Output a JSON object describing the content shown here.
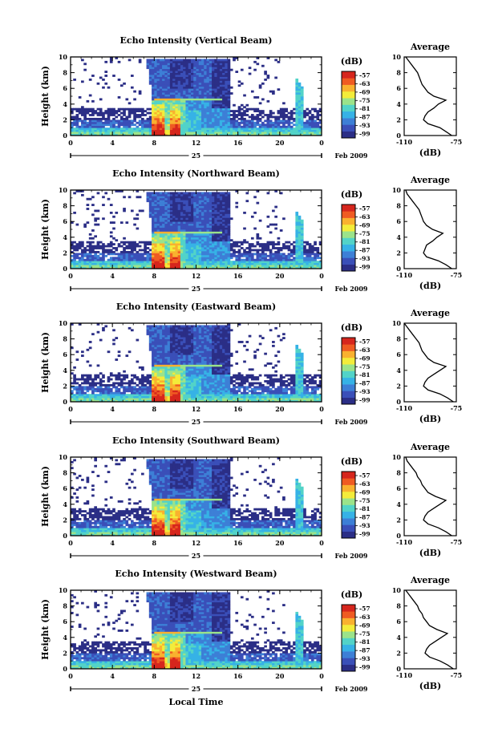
{
  "chart_data": [
    {
      "type": "heatmap",
      "title": "Echo Intensity (Vertical Beam)",
      "ylabel": "Height (km)",
      "xlim": [
        0,
        24
      ],
      "ylim": [
        0,
        10
      ],
      "xticks": [
        "0",
        "4",
        "8",
        "12",
        "16",
        "20",
        "0"
      ],
      "yticks": [
        "0",
        "2",
        "4",
        "6",
        "8",
        "10"
      ],
      "date_label": "25",
      "month_year": "Feb 2009",
      "colorbar": {
        "unit": "(dB)",
        "ticks": [
          "-57",
          "-63",
          "-69",
          "-75",
          "-81",
          "-87",
          "-93",
          "-99"
        ]
      },
      "average": {
        "title": "Average",
        "xlabel": "(dB)",
        "xticks": [
          "-110",
          "-75"
        ],
        "xlim": [
          -110,
          -75
        ],
        "height": [
          0,
          0.5,
          1,
          1.5,
          2,
          2.5,
          3,
          3.5,
          4,
          4.5,
          5,
          5.5,
          6,
          6.5,
          7,
          7.5,
          8,
          8.5,
          9,
          9.5,
          10
        ],
        "db": [
          -78,
          -82,
          -86,
          -94,
          -97,
          -96,
          -94,
          -90,
          -87,
          -82,
          -90,
          -94,
          -96,
          -98,
          -99,
          -100,
          -101,
          -103,
          -105,
          -107,
          -109
        ]
      }
    },
    {
      "type": "heatmap",
      "title": "Echo Intensity (Northward Beam)",
      "ylabel": "Height (km)",
      "xlim": [
        0,
        24
      ],
      "ylim": [
        0,
        10
      ],
      "xticks": [
        "0",
        "4",
        "8",
        "12",
        "16",
        "20",
        "0"
      ],
      "yticks": [
        "0",
        "2",
        "4",
        "6",
        "8",
        "10"
      ],
      "date_label": "25",
      "month_year": "Feb 2009",
      "colorbar": {
        "unit": "(dB)",
        "ticks": [
          "-57",
          "-63",
          "-69",
          "-75",
          "-81",
          "-87",
          "-93",
          "-99"
        ]
      },
      "average": {
        "title": "Average",
        "xlabel": "(dB)",
        "xticks": [
          "-110",
          "-75"
        ],
        "xlim": [
          -110,
          -75
        ],
        "height": [
          0,
          0.5,
          1,
          1.5,
          2,
          2.5,
          3,
          3.5,
          4,
          4.5,
          5,
          5.5,
          6,
          6.5,
          7,
          7.5,
          8,
          8.5,
          9,
          9.5,
          10
        ],
        "db": [
          -78,
          -82,
          -87,
          -95,
          -97,
          -96,
          -95,
          -91,
          -88,
          -84,
          -91,
          -95,
          -97,
          -98,
          -99,
          -100,
          -102,
          -104,
          -106,
          -108,
          -109
        ]
      }
    },
    {
      "type": "heatmap",
      "title": "Echo Intensity (Eastward Beam)",
      "ylabel": "Height (km)",
      "xlim": [
        0,
        24
      ],
      "ylim": [
        0,
        10
      ],
      "xticks": [
        "0",
        "4",
        "8",
        "12",
        "16",
        "20",
        "0"
      ],
      "yticks": [
        "0",
        "2",
        "4",
        "6",
        "8",
        "10"
      ],
      "date_label": "25",
      "month_year": "Feb 2009",
      "colorbar": {
        "unit": "(dB)",
        "ticks": [
          "-57",
          "-63",
          "-69",
          "-75",
          "-81",
          "-87",
          "-93",
          "-99"
        ]
      },
      "average": {
        "title": "Average",
        "xlabel": "(dB)",
        "xticks": [
          "-110",
          "-75"
        ],
        "xlim": [
          -110,
          -75
        ],
        "height": [
          0,
          0.5,
          1,
          1.5,
          2,
          2.5,
          3,
          3.5,
          4,
          4.5,
          5,
          5.5,
          6,
          6.5,
          7,
          7.5,
          8,
          8.5,
          9,
          9.5,
          10
        ],
        "db": [
          -77,
          -81,
          -86,
          -94,
          -97,
          -96,
          -94,
          -90,
          -86,
          -82,
          -90,
          -94,
          -96,
          -98,
          -99,
          -100,
          -102,
          -104,
          -106,
          -108,
          -110
        ]
      }
    },
    {
      "type": "heatmap",
      "title": "Echo Intensity (Southward Beam)",
      "ylabel": "Height (km)",
      "xlim": [
        0,
        24
      ],
      "ylim": [
        0,
        10
      ],
      "xticks": [
        "0",
        "4",
        "8",
        "12",
        "16",
        "20",
        "0"
      ],
      "yticks": [
        "0",
        "2",
        "4",
        "6",
        "8",
        "10"
      ],
      "date_label": "25",
      "month_year": "Feb 2009",
      "colorbar": {
        "unit": "(dB)",
        "ticks": [
          "-57",
          "-63",
          "-69",
          "-75",
          "-81",
          "-87",
          "-93",
          "-99"
        ]
      },
      "average": {
        "title": "Average",
        "xlabel": "(dB)",
        "xticks": [
          "-110",
          "-75"
        ],
        "xlim": [
          -110,
          -75
        ],
        "height": [
          0,
          0.5,
          1,
          1.5,
          2,
          2.5,
          3,
          3.5,
          4,
          4.5,
          5,
          5.5,
          6,
          6.5,
          7,
          7.5,
          8,
          8.5,
          9,
          9.5,
          10
        ],
        "db": [
          -78,
          -82,
          -87,
          -94,
          -97,
          -96,
          -94,
          -90,
          -86,
          -82,
          -89,
          -94,
          -96,
          -98,
          -99,
          -101,
          -102,
          -104,
          -106,
          -108,
          -109
        ]
      }
    },
    {
      "type": "heatmap",
      "title": "Echo Intensity (Westward Beam)",
      "ylabel": "Height (km)",
      "xlabel": "Local Time",
      "xlim": [
        0,
        24
      ],
      "ylim": [
        0,
        10
      ],
      "xticks": [
        "0",
        "4",
        "8",
        "12",
        "16",
        "20",
        "0"
      ],
      "yticks": [
        "0",
        "2",
        "4",
        "6",
        "8",
        "10"
      ],
      "date_label": "25",
      "month_year": "Feb 2009",
      "colorbar": {
        "unit": "(dB)",
        "ticks": [
          "-57",
          "-63",
          "-69",
          "-75",
          "-81",
          "-87",
          "-93",
          "-99"
        ]
      },
      "average": {
        "title": "Average",
        "xlabel": "(dB)",
        "xticks": [
          "-110",
          "-75"
        ],
        "xlim": [
          -110,
          -75
        ],
        "height": [
          0,
          0.5,
          1,
          1.5,
          2,
          2.5,
          3,
          3.5,
          4,
          4.5,
          5,
          5.5,
          6,
          6.5,
          7,
          7.5,
          8,
          8.5,
          9,
          9.5,
          10
        ],
        "db": [
          -77,
          -81,
          -86,
          -93,
          -96,
          -95,
          -93,
          -89,
          -85,
          -81,
          -88,
          -93,
          -95,
          -97,
          -98,
          -100,
          -101,
          -103,
          -105,
          -107,
          -109
        ]
      }
    }
  ],
  "colorscale": [
    "#2b2e86",
    "#3a4fb8",
    "#3d7fd6",
    "#36b2e6",
    "#52d3c8",
    "#9be38a",
    "#f3ec3a",
    "#f9b12f",
    "#ef5b22",
    "#d6261d"
  ]
}
